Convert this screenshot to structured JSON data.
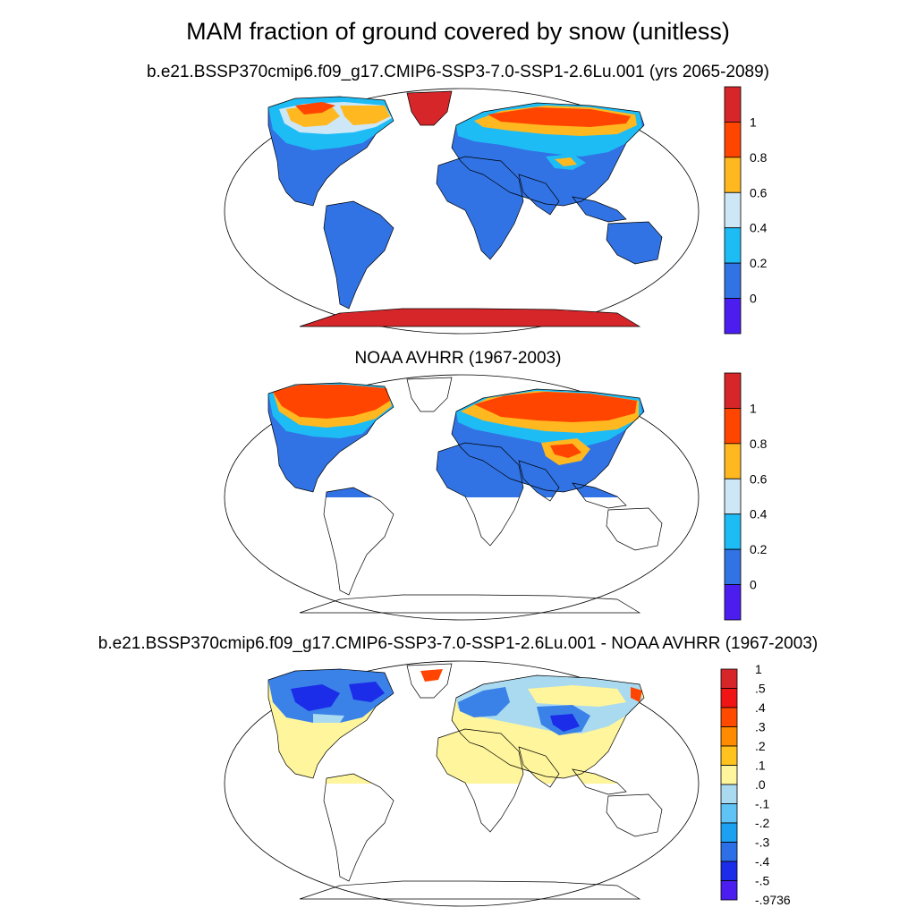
{
  "main_title": "MAM fraction of ground covered by snow (unitless)",
  "panels": [
    {
      "title": "b.e21.BSSP370cmip6.f09_g17.CMIP6-SSP3-7.0-SSP1-2.6Lu.001 (yrs 2065-2089)",
      "colorbar_labels": [
        "1",
        "0.8",
        "0.6",
        "0.4",
        "0.2",
        "0"
      ],
      "colorbar_colors": [
        "#d7262a",
        "#ff4500",
        "#ffb81f",
        "#cde7f7",
        "#1ebcf5",
        "#3173e4",
        "#4b1eef"
      ]
    },
    {
      "title": "NOAA AVHRR (1967-2003)",
      "colorbar_labels": [
        "1",
        "0.8",
        "0.6",
        "0.4",
        "0.2",
        "0"
      ],
      "colorbar_colors": [
        "#d7262a",
        "#ff4500",
        "#ffb81f",
        "#cde7f7",
        "#1ebcf5",
        "#3173e4",
        "#4b1eef"
      ]
    },
    {
      "title": "b.e21.BSSP370cmip6.f09_g17.CMIP6-SSP3-7.0-SSP1-2.6Lu.001 - NOAA AVHRR (1967-2003)",
      "colorbar_labels": [
        "1",
        ".5",
        ".4",
        ".3",
        ".2",
        ".1",
        ".0",
        "-.1",
        "-.2",
        "-.3",
        "-.4",
        "-.5",
        "-.9736"
      ],
      "colorbar_colors": [
        "#d7262a",
        "#f01414",
        "#ff4a00",
        "#ff8c00",
        "#ffc21e",
        "#fff59c",
        "#a9daf0",
        "#5fc3f5",
        "#1ba0f2",
        "#2d6fe6",
        "#1b2de8",
        "#4b1eef"
      ]
    }
  ],
  "colors": {
    "land_low": "#3173e4",
    "snow_mid": "#1ebcf5",
    "snow_hi": "#ffb81f",
    "snow_full": "#ff4500",
    "ice": "#d7262a",
    "diff_pos": "#fff59c",
    "diff_neg": "#3a82e8",
    "diff_strong_neg": "#1b2de8",
    "diff_light": "#a9daf0"
  }
}
